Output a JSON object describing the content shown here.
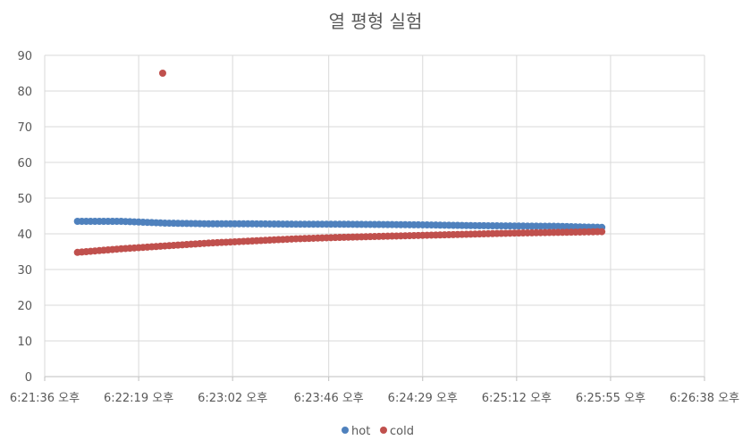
{
  "chart_data": {
    "type": "scatter",
    "title": "열 평형 실험",
    "xlabel": "",
    "ylabel": "",
    "ylim": [
      0,
      90
    ],
    "y_ticks": [
      0,
      10,
      20,
      30,
      40,
      50,
      60,
      70,
      80,
      90
    ],
    "x_ticks": [
      "6:21:36 오후",
      "6:22:19 오후",
      "6:23:02 오후",
      "6:23:46 오후",
      "6:24:29 오후",
      "6:25:12 오후",
      "6:25:55 오후",
      "6:26:38 오후"
    ],
    "xlim": [
      "6:21:36 오후",
      "6:26:38 오후"
    ],
    "grid": true,
    "legend_position": "bottom",
    "series": [
      {
        "name": "hot",
        "color": "#4f81bd",
        "x": [
          "6:21:51 오후",
          "6:22:11 오후",
          "6:22:31 오후",
          "6:22:51 오후",
          "6:23:11 오후",
          "6:23:31 오후",
          "6:23:51 오후",
          "6:24:11 오후",
          "6:24:31 오후",
          "6:24:51 오후",
          "6:25:11 오후",
          "6:25:31 오후",
          "6:25:51 오후"
        ],
        "y": [
          43.5,
          43.5,
          43.0,
          42.8,
          42.8,
          42.7,
          42.7,
          42.6,
          42.5,
          42.3,
          42.2,
          42.1,
          41.8
        ]
      },
      {
        "name": "cold",
        "color": "#c0504d",
        "x": [
          "6:21:51 오후",
          "6:22:11 오후",
          "6:22:31 오후",
          "6:22:51 오후",
          "6:23:11 오후",
          "6:23:31 오후",
          "6:23:51 오후",
          "6:24:11 오후",
          "6:24:31 오후",
          "6:24:51 오후",
          "6:25:11 오후",
          "6:25:31 오후",
          "6:25:51 오후",
          "6:22:30 오후"
        ],
        "y": [
          34.8,
          35.8,
          36.6,
          37.4,
          38.0,
          38.6,
          39.0,
          39.3,
          39.6,
          39.9,
          40.2,
          40.4,
          40.6,
          85.0
        ]
      }
    ]
  }
}
